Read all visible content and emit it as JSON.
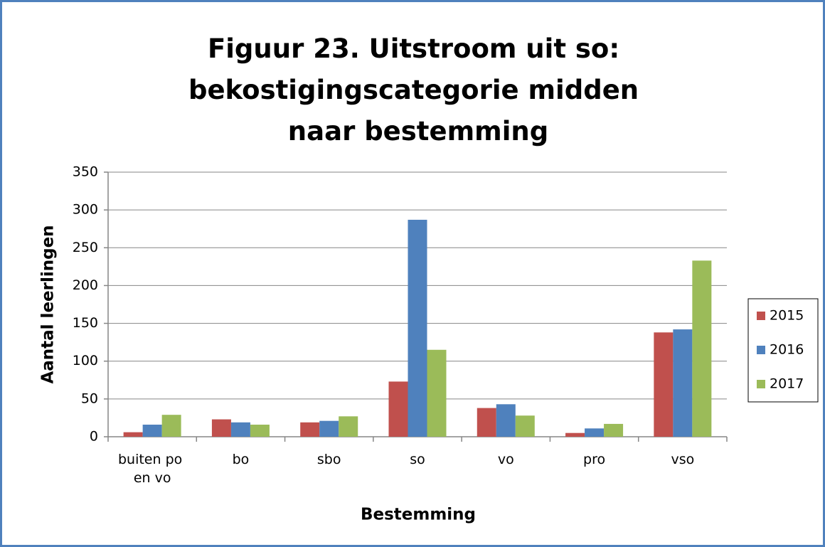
{
  "chart_data": {
    "type": "bar",
    "title": "Figuur 23. Uitstroom uit so: bekostigingscategorie midden naar bestemming",
    "xlabel": "Bestemming",
    "ylabel": "Aantal leerlingen",
    "categories": [
      "buiten po en vo",
      "bo",
      "sbo",
      "so",
      "vo",
      "pro",
      "vso"
    ],
    "series": [
      {
        "name": "2015",
        "color": "#c0504d",
        "values": [
          6,
          23,
          19,
          73,
          38,
          5,
          138
        ]
      },
      {
        "name": "2016",
        "color": "#4f81bd",
        "values": [
          16,
          19,
          21,
          287,
          43,
          11,
          142
        ]
      },
      {
        "name": "2017",
        "color": "#9bbb59",
        "values": [
          29,
          16,
          27,
          115,
          28,
          17,
          233
        ]
      }
    ],
    "ylim": [
      0,
      350
    ],
    "yticks": [
      0,
      50,
      100,
      150,
      200,
      250,
      300,
      350
    ],
    "grid": true,
    "legend": "right"
  }
}
